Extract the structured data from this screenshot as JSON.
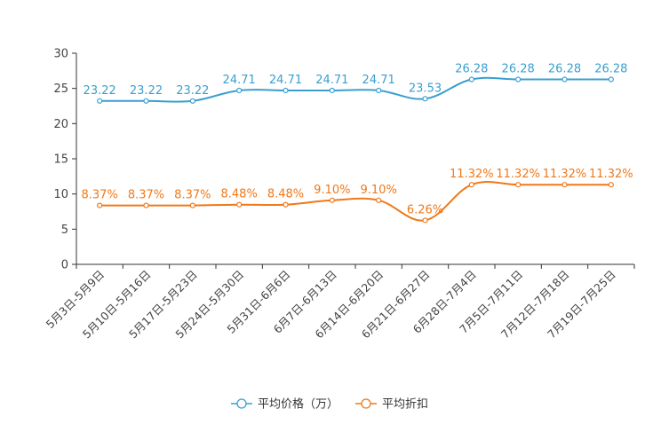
{
  "chart_data": {
    "type": "line",
    "title": "",
    "xlabel": "",
    "ylabel": "",
    "ylim": [
      0,
      30
    ],
    "yticks": [
      0,
      5,
      10,
      15,
      20,
      25,
      30
    ],
    "categories": [
      "5月3日-5月9日",
      "5月10日-5月16日",
      "5月17日-5月23日",
      "5月24日-5月30日",
      "5月31日-6月6日",
      "6月7日-6月13日",
      "6月14日-6月20日",
      "6月21日-6月27日",
      "6月28日-7月4日",
      "7月5日-7月11日",
      "7月12日-7月18日",
      "7月19日-7月25日"
    ],
    "series": [
      {
        "name": "平均价格（万）",
        "color": "#3a9fd0",
        "values": [
          23.22,
          23.22,
          23.22,
          24.71,
          24.71,
          24.71,
          24.71,
          23.53,
          26.28,
          26.28,
          26.28,
          26.28
        ],
        "labels": [
          "23.22",
          "23.22",
          "23.22",
          "24.71",
          "24.71",
          "24.71",
          "24.71",
          "23.53",
          "26.28",
          "26.28",
          "26.28",
          "26.28"
        ]
      },
      {
        "name": "平均折扣",
        "color": "#f07818",
        "values": [
          8.37,
          8.37,
          8.37,
          8.48,
          8.48,
          9.1,
          9.1,
          6.26,
          11.32,
          11.32,
          11.32,
          11.32
        ],
        "labels": [
          "8.37%",
          "8.37%",
          "8.37%",
          "8.48%",
          "8.48%",
          "9.10%",
          "9.10%",
          "6.26%",
          "11.32%",
          "11.32%",
          "11.32%",
          "11.32%"
        ]
      }
    ],
    "legend": "bottom-center",
    "grid": false
  }
}
